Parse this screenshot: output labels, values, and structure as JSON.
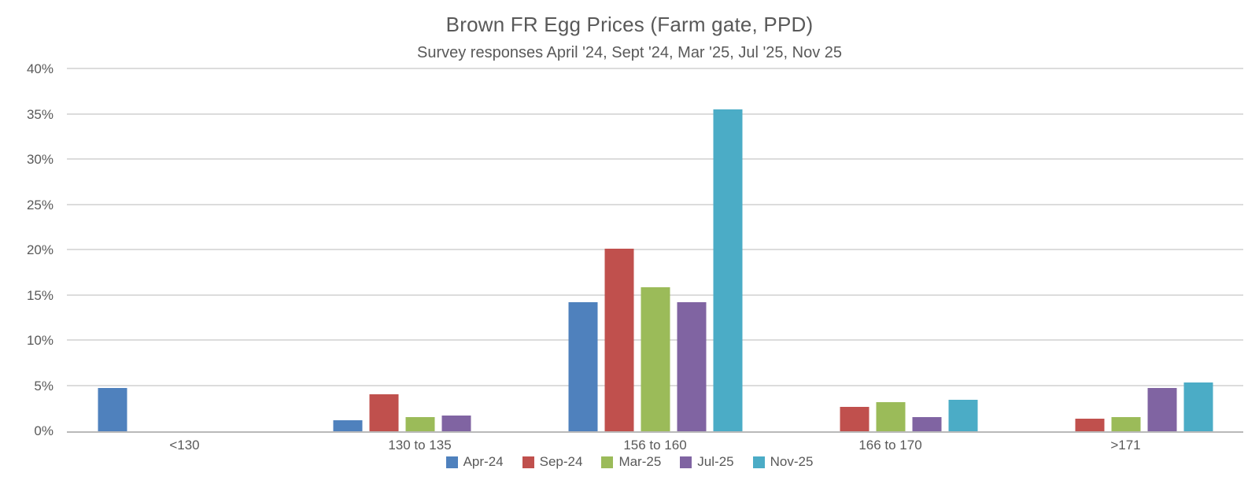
{
  "chart_data": {
    "type": "bar",
    "title": "Brown FR Egg Prices (Farm gate, PPD)",
    "subtitle": "Survey responses April '24, Sept '24, Mar '25, Jul '25, Nov 25",
    "categories": [
      "<130",
      "130 to 135",
      "156 to 160",
      "166 to 170",
      ">171"
    ],
    "series": [
      {
        "name": "Apr-24",
        "color": "#4F81BD",
        "values": [
          4.8,
          1.2,
          14.3,
          0,
          0
        ]
      },
      {
        "name": "Sep-24",
        "color": "#C0504D",
        "values": [
          0,
          4.1,
          20.2,
          2.7,
          1.4
        ]
      },
      {
        "name": "Mar-25",
        "color": "#9BBB59",
        "values": [
          0,
          1.6,
          15.9,
          3.2,
          1.6
        ]
      },
      {
        "name": "Jul-25",
        "color": "#8064A2",
        "values": [
          0,
          1.7,
          14.3,
          1.6,
          4.8
        ]
      },
      {
        "name": "Nov-25",
        "color": "#4BACC6",
        "values": [
          0,
          0,
          35.6,
          3.5,
          5.4
        ]
      }
    ],
    "y_ticks": [
      {
        "value": 0,
        "label": "0%"
      },
      {
        "value": 5,
        "label": "5%"
      },
      {
        "value": 10,
        "label": "10%"
      },
      {
        "value": 15,
        "label": "15%"
      },
      {
        "value": 20,
        "label": "20%"
      },
      {
        "value": 25,
        "label": "25%"
      },
      {
        "value": 30,
        "label": "30%"
      },
      {
        "value": 35,
        "label": "35%"
      },
      {
        "value": 40,
        "label": "40%"
      }
    ],
    "ylim": [
      0,
      40
    ],
    "xlabel": "",
    "ylabel": "",
    "grid": true,
    "legend_position": "bottom",
    "colors": {
      "background": "#FFFFFF",
      "text": "#595959",
      "gridline": "#DCDCDC",
      "axis_line": "#B9B9B9"
    }
  }
}
